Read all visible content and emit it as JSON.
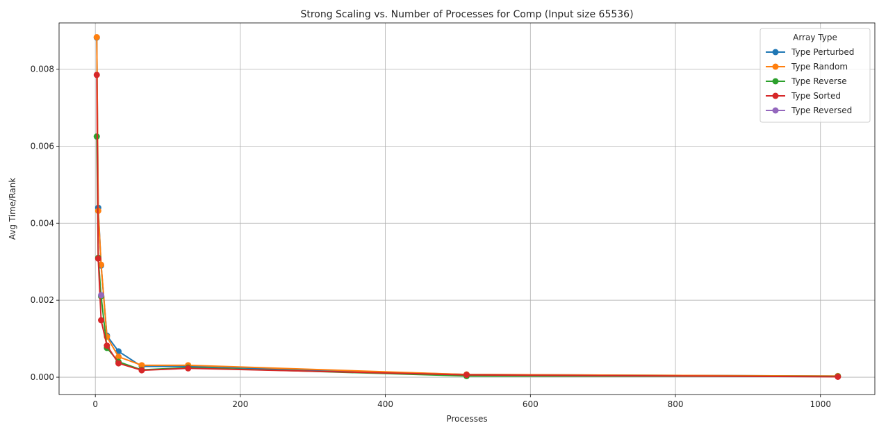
{
  "chart_data": {
    "type": "line",
    "title": "Strong Scaling vs. Number of Processes for Comp (Input size 65536)",
    "xlabel": "Processes",
    "ylabel": "Avg Time/Rank",
    "xlim": [
      -50,
      1075
    ],
    "ylim": [
      -0.00045,
      0.0092
    ],
    "xticks": [
      0,
      200,
      400,
      600,
      800,
      1000
    ],
    "yticks": [
      0.0,
      0.002,
      0.004,
      0.006,
      0.008
    ],
    "xtick_labels": [
      "0",
      "200",
      "400",
      "600",
      "800",
      "1000"
    ],
    "ytick_labels": [
      "0.000",
      "0.002",
      "0.004",
      "0.006",
      "0.008"
    ],
    "grid": true,
    "legend": {
      "title": "Array Type",
      "placement": "top-right"
    },
    "series": [
      {
        "name": "Type Perturbed",
        "color": "#1f77b4",
        "x": [
          2,
          4,
          8,
          16,
          32,
          64,
          128,
          512,
          1024
        ],
        "y": [
          0.00882,
          0.0044,
          0.0029,
          0.00108,
          0.00067,
          0.00028,
          0.00028,
          7e-05,
          3e-05
        ]
      },
      {
        "name": "Type Random",
        "color": "#ff7f0e",
        "x": [
          2,
          4,
          8,
          16,
          32,
          64,
          128,
          512,
          1024
        ],
        "y": [
          0.00883,
          0.00432,
          0.00292,
          0.00105,
          0.00053,
          0.00031,
          0.00031,
          7e-05,
          3e-05
        ]
      },
      {
        "name": "Type Reverse",
        "color": "#2ca02c",
        "x": [
          2,
          4,
          8,
          16,
          32,
          64,
          128,
          512,
          1024
        ],
        "y": [
          0.00625,
          0.0031,
          0.0021,
          0.00076,
          0.0004,
          0.00019,
          0.00025,
          3e-05,
          2e-05
        ]
      },
      {
        "name": "Type Sorted",
        "color": "#d62728",
        "x": [
          2,
          4,
          8,
          16,
          32,
          64,
          128,
          512,
          1024
        ],
        "y": [
          0.00785,
          0.00308,
          0.00148,
          0.00082,
          0.00036,
          0.00018,
          0.00023,
          6e-05,
          1e-05
        ]
      },
      {
        "name": "Type Reversed",
        "color": "#9467bd",
        "x": [
          8
        ],
        "y": [
          0.00213
        ]
      }
    ]
  }
}
